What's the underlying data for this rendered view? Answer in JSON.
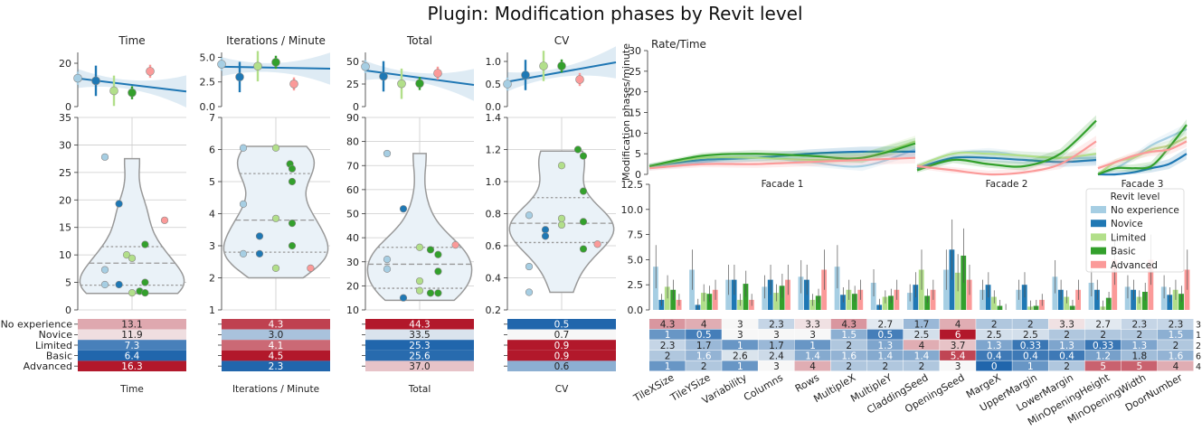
{
  "title": "Plugin: Modification phases by Revit level",
  "levels": [
    "No experience",
    "Novice",
    "Limited",
    "Basic",
    "Advanced"
  ],
  "colors": {
    "levels": [
      "#a6cee3",
      "#1f78b4",
      "#b2df8a",
      "#33a02c",
      "#fb9a99"
    ],
    "heat_low": "#2166ac",
    "heat_mid": "#f7f7f7",
    "heat_high": "#b2182b",
    "violin_fill": "#eaf2f8",
    "violin_line": "#999999",
    "regline": "#1f77b4"
  },
  "chart_data": [
    {
      "type": "scatter",
      "panel": "Time",
      "title": "Time",
      "xlabel": "Time",
      "reg_ylim": [
        0,
        25
      ],
      "reg_yticks": [
        0,
        20
      ],
      "reg_x_max": 6,
      "reg_line": [
        13.0,
        7.0
      ],
      "reg_points": [
        {
          "x": 0,
          "y": 13.1
        },
        {
          "x": 1,
          "y": 11.9
        },
        {
          "x": 2,
          "y": 7.3
        },
        {
          "x": 3,
          "y": 6.4
        },
        {
          "x": 4,
          "y": 16.3
        }
      ],
      "violin_ylim": [
        0,
        35
      ],
      "violin_yticks": [
        0,
        5,
        10,
        15,
        20,
        25,
        30,
        35
      ],
      "violin_range": [
        3,
        27.5
      ],
      "quartiles": [
        4.5,
        8.5,
        11.5
      ],
      "points": [
        {
          "level": 0,
          "x": -0.25,
          "y": 27.8
        },
        {
          "level": 0,
          "x": -0.25,
          "y": 7.3
        },
        {
          "level": 0,
          "x": -0.25,
          "y": 4.6
        },
        {
          "level": 1,
          "x": -0.12,
          "y": 19.3
        },
        {
          "level": 1,
          "x": -0.12,
          "y": 4.6
        },
        {
          "level": 2,
          "x": -0.05,
          "y": 10.0
        },
        {
          "level": 2,
          "x": 0.0,
          "y": 9.4
        },
        {
          "level": 2,
          "x": 0.0,
          "y": 3.1
        },
        {
          "level": 3,
          "x": 0.12,
          "y": 11.9
        },
        {
          "level": 3,
          "x": 0.12,
          "y": 5.0
        },
        {
          "level": 3,
          "x": 0.07,
          "y": 3.4
        },
        {
          "level": 3,
          "x": 0.12,
          "y": 3.1
        },
        {
          "level": 4,
          "x": 0.3,
          "y": 16.3
        }
      ],
      "heat_values": [
        "13.1",
        "11.9",
        "7.3",
        "6.4",
        "16.3"
      ]
    },
    {
      "type": "scatter",
      "panel": "Iterations",
      "title": "Iterations / Minute",
      "xlabel": "Iterations / Minute",
      "reg_ylim": [
        0,
        5.5
      ],
      "reg_yticks": [
        0.0,
        2.5,
        5.0
      ],
      "reg_x_max": 6,
      "reg_line": [
        4.05,
        3.85
      ],
      "reg_points": [
        {
          "x": 0,
          "y": 4.3
        },
        {
          "x": 1,
          "y": 3.0
        },
        {
          "x": 2,
          "y": 4.1
        },
        {
          "x": 3,
          "y": 4.5
        },
        {
          "x": 4,
          "y": 2.3
        }
      ],
      "violin_ylim": [
        1,
        7
      ],
      "violin_yticks": [
        1,
        2,
        3,
        4,
        5,
        6,
        7
      ],
      "violin_range": [
        2.0,
        6.1
      ],
      "quartiles": [
        2.8,
        3.8,
        5.25
      ],
      "points": [
        {
          "level": 0,
          "x": -0.3,
          "y": 6.05
        },
        {
          "level": 0,
          "x": -0.3,
          "y": 4.3
        },
        {
          "level": 0,
          "x": -0.3,
          "y": 2.75
        },
        {
          "level": 1,
          "x": -0.15,
          "y": 3.3
        },
        {
          "level": 1,
          "x": -0.15,
          "y": 2.75
        },
        {
          "level": 2,
          "x": 0.0,
          "y": 6.05
        },
        {
          "level": 2,
          "x": 0.0,
          "y": 3.85
        },
        {
          "level": 2,
          "x": 0.0,
          "y": 2.3
        },
        {
          "level": 3,
          "x": 0.13,
          "y": 5.55
        },
        {
          "level": 3,
          "x": 0.15,
          "y": 5.4
        },
        {
          "level": 3,
          "x": 0.15,
          "y": 5.0
        },
        {
          "level": 3,
          "x": 0.15,
          "y": 3.7
        },
        {
          "level": 3,
          "x": 0.15,
          "y": 3.0
        },
        {
          "level": 4,
          "x": 0.32,
          "y": 2.3
        }
      ],
      "heat_values": [
        "4.3",
        "3.0",
        "4.1",
        "4.5",
        "2.3"
      ]
    },
    {
      "type": "scatter",
      "panel": "Total",
      "title": "Total",
      "xlabel": "Total",
      "reg_ylim": [
        0,
        60
      ],
      "reg_yticks": [
        0,
        25,
        50
      ],
      "reg_x_max": 6,
      "reg_line": [
        40.0,
        24.0
      ],
      "reg_points": [
        {
          "x": 0,
          "y": 44.3
        },
        {
          "x": 1,
          "y": 33.5
        },
        {
          "x": 2,
          "y": 25.3
        },
        {
          "x": 3,
          "y": 25.6
        },
        {
          "x": 4,
          "y": 37.0
        }
      ],
      "violin_ylim": [
        10,
        90
      ],
      "violin_yticks": [
        10,
        20,
        30,
        40,
        50,
        60,
        70,
        80,
        90
      ],
      "violin_range": [
        14,
        75
      ],
      "quartiles": [
        19,
        29,
        36
      ],
      "points": [
        {
          "level": 0,
          "x": -0.3,
          "y": 75
        },
        {
          "level": 0,
          "x": -0.3,
          "y": 31
        },
        {
          "level": 0,
          "x": -0.3,
          "y": 27
        },
        {
          "level": 1,
          "x": -0.15,
          "y": 52
        },
        {
          "level": 1,
          "x": -0.15,
          "y": 15
        },
        {
          "level": 2,
          "x": 0.0,
          "y": 36
        },
        {
          "level": 2,
          "x": 0.0,
          "y": 22
        },
        {
          "level": 2,
          "x": 0.0,
          "y": 18
        },
        {
          "level": 3,
          "x": 0.1,
          "y": 35
        },
        {
          "level": 3,
          "x": 0.17,
          "y": 33
        },
        {
          "level": 3,
          "x": 0.17,
          "y": 26
        },
        {
          "level": 3,
          "x": 0.1,
          "y": 17
        },
        {
          "level": 3,
          "x": 0.17,
          "y": 17
        },
        {
          "level": 4,
          "x": 0.33,
          "y": 37
        }
      ],
      "heat_values": [
        "44.3",
        "33.5",
        "25.3",
        "25.6",
        "37.0"
      ]
    },
    {
      "type": "scatter",
      "panel": "CV",
      "title": "CV",
      "xlabel": "CV",
      "reg_ylim": [
        0,
        1.2
      ],
      "reg_yticks": [
        0.0,
        0.5,
        1.0
      ],
      "reg_x_max": 6,
      "reg_line": [
        0.55,
        0.98
      ],
      "reg_points": [
        {
          "x": 0,
          "y": 0.5
        },
        {
          "x": 1,
          "y": 0.7
        },
        {
          "x": 2,
          "y": 0.9
        },
        {
          "x": 3,
          "y": 0.9
        },
        {
          "x": 4,
          "y": 0.6
        }
      ],
      "violin_ylim": [
        0.2,
        1.4
      ],
      "violin_yticks": [
        0.2,
        0.4,
        0.6,
        0.8,
        1.0,
        1.2,
        1.4
      ],
      "violin_range": [
        0.31,
        1.19
      ],
      "quartiles": [
        0.62,
        0.74,
        0.9
      ],
      "points": [
        {
          "level": 0,
          "x": -0.3,
          "y": 0.79
        },
        {
          "level": 0,
          "x": -0.3,
          "y": 0.47
        },
        {
          "level": 0,
          "x": -0.3,
          "y": 0.31
        },
        {
          "level": 1,
          "x": -0.15,
          "y": 0.7
        },
        {
          "level": 1,
          "x": -0.15,
          "y": 0.66
        },
        {
          "level": 2,
          "x": 0.0,
          "y": 1.1
        },
        {
          "level": 2,
          "x": 0.0,
          "y": 0.77
        },
        {
          "level": 2,
          "x": 0.0,
          "y": 0.73
        },
        {
          "level": 3,
          "x": 0.15,
          "y": 1.2
        },
        {
          "level": 3,
          "x": 0.2,
          "y": 1.16
        },
        {
          "level": 3,
          "x": 0.2,
          "y": 0.94
        },
        {
          "level": 3,
          "x": 0.2,
          "y": 0.75
        },
        {
          "level": 3,
          "x": 0.2,
          "y": 0.58
        },
        {
          "level": 4,
          "x": 0.33,
          "y": 0.61
        }
      ],
      "heat_values": [
        "0.5",
        "0.7",
        "0.9",
        "0.9",
        "0.6"
      ]
    },
    {
      "type": "line",
      "panel": "Rate/Time",
      "title": "Rate/Time",
      "ylabel": "Modification phases/minute",
      "ylim": [
        0,
        30
      ],
      "yticks": [
        0,
        5,
        10,
        15,
        20,
        25,
        30
      ],
      "facades": [
        "Facade 1",
        "Facade 2",
        "Facade 3"
      ],
      "t_span": [
        0,
        10
      ],
      "series": [
        {
          "level": 0,
          "facades": [
            {
              "t": [
                0,
                2,
                4,
                6,
                8,
                10
              ],
              "y": [
                1.5,
                3.0,
                4.0,
                3.0,
                2.0,
                6.0
              ]
            },
            {
              "t": [
                0,
                2,
                4,
                6,
                8,
                10
              ],
              "y": [
                2.0,
                5.0,
                5.5,
                4.5,
                4.0,
                4.0
              ]
            },
            {
              "t": [
                0,
                2,
                4,
                6,
                8,
                10
              ],
              "y": [
                0,
                1.5,
                4.0,
                7.0,
                9.0,
                11.0
              ]
            }
          ]
        },
        {
          "level": 1,
          "facades": [
            {
              "t": [
                0,
                2,
                4,
                6,
                8,
                10
              ],
              "y": [
                2.0,
                3.5,
                4.0,
                5.0,
                5.5,
                5.5
              ]
            },
            {
              "t": [
                0,
                2,
                4,
                6,
                8,
                10
              ],
              "y": [
                1.5,
                4.0,
                4.0,
                3.5,
                3.0,
                3.5
              ]
            },
            {
              "t": [
                0,
                2,
                4,
                6,
                8,
                10
              ],
              "y": [
                0,
                0,
                0.5,
                1.5,
                2.5,
                5.0
              ]
            }
          ]
        },
        {
          "level": 2,
          "facades": [
            {
              "t": [
                0,
                2,
                4,
                6,
                8,
                10
              ],
              "y": [
                2.0,
                4.0,
                4.0,
                3.5,
                4.0,
                8.0
              ]
            },
            {
              "t": [
                0,
                2,
                4,
                6,
                8,
                10
              ],
              "y": [
                2.0,
                5.0,
                5.0,
                4.5,
                4.0,
                5.0
              ]
            },
            {
              "t": [
                0,
                2,
                4,
                6,
                8,
                10
              ],
              "y": [
                0,
                3.0,
                4.0,
                6.0,
                7.0,
                9.0
              ]
            }
          ]
        },
        {
          "level": 3,
          "facades": [
            {
              "t": [
                0,
                2,
                4,
                6,
                8,
                10
              ],
              "y": [
                2.0,
                4.5,
                5.0,
                4.5,
                4.0,
                7.5
              ]
            },
            {
              "t": [
                0,
                2,
                4,
                6,
                8,
                10
              ],
              "y": [
                1.0,
                3.5,
                2.5,
                2.0,
                5.0,
                13.0
              ]
            },
            {
              "t": [
                0,
                2,
                4,
                6,
                8,
                10
              ],
              "y": [
                0,
                1.5,
                1.5,
                2.0,
                6.5,
                12.0
              ]
            }
          ]
        },
        {
          "level": 4,
          "facades": [
            {
              "t": [
                0,
                2,
                4,
                6,
                8,
                10
              ],
              "y": [
                1.5,
                2.5,
                2.5,
                3.0,
                3.5,
                4.0
              ]
            },
            {
              "t": [
                0,
                2,
                4,
                6,
                8,
                10
              ],
              "y": [
                2.0,
                1.0,
                0.0,
                0.5,
                2.5,
                8.0
              ]
            },
            {
              "t": [
                0,
                2,
                4,
                6,
                8,
                10
              ],
              "y": [
                1.5,
                3.0,
                4.5,
                5.5,
                6.0,
                8.0
              ]
            }
          ]
        }
      ]
    },
    {
      "type": "bar",
      "panel": "Parameters",
      "ylim": [
        0,
        12.5
      ],
      "yticks": [
        0.0,
        2.5,
        5.0,
        7.5,
        10.0,
        12.5
      ],
      "legend_title": "Revit level",
      "legend_position": "top-right",
      "categories": [
        "TileXSize",
        "TileYSize",
        "Variability",
        "Columns",
        "Rows",
        "MultipleX",
        "MultipleY",
        "CladdingSeed",
        "OpeningSeed",
        "MargeX",
        "UpperMargin",
        "LowerMargin",
        "MinOpeningHeight",
        "MinOpeningWidth",
        "DoorNumber"
      ],
      "series": [
        {
          "name": "No experience",
          "level": 0,
          "values": [
            4.3,
            4,
            3,
            2.3,
            3.3,
            4.3,
            2.7,
            1.7,
            4,
            2,
            2,
            3.3,
            2.7,
            2.3,
            2.3
          ]
        },
        {
          "name": "Novice",
          "level": 1,
          "values": [
            1,
            0.5,
            3,
            3,
            3,
            1.5,
            0.5,
            2.5,
            6,
            2.5,
            2.5,
            2,
            2,
            2,
            1.5
          ]
        },
        {
          "name": "Limited",
          "level": 2,
          "values": [
            2.3,
            1.7,
            1,
            1.7,
            1,
            2,
            1.3,
            4,
            3.7,
            1.3,
            0.33,
            1.3,
            0.33,
            1.3,
            2
          ]
        },
        {
          "name": "Basic",
          "level": 3,
          "values": [
            2,
            1.6,
            2.6,
            2.4,
            1.4,
            1.6,
            1.4,
            1.4,
            5.4,
            0.4,
            0.4,
            0.4,
            1.2,
            1.8,
            1.6
          ]
        },
        {
          "name": "Advanced",
          "level": 4,
          "values": [
            1,
            2,
            1,
            3,
            4,
            2,
            2,
            2,
            3,
            0,
            1,
            2,
            5,
            5,
            4
          ]
        }
      ],
      "heat_labels": [
        [
          "4.3",
          "4",
          "3",
          "2.3",
          "3.3",
          "4.3",
          "2.7",
          "1.7",
          "4",
          "2",
          "2",
          "3.3",
          "2.7",
          "2.3",
          "2.3"
        ],
        [
          "1",
          "0.5",
          "3",
          "3",
          "3",
          "1.5",
          "0.5",
          "2.5",
          "6",
          "2.5",
          "2.5",
          "2",
          "2",
          "2",
          "1.5"
        ],
        [
          "2.3",
          "1.7",
          "1",
          "1.7",
          "1",
          "2",
          "1.3",
          "4",
          "3.7",
          "1.3",
          "0.33",
          "1.3",
          "0.33",
          "1.3",
          "2"
        ],
        [
          "2",
          "1.6",
          "2.6",
          "2.4",
          "1.4",
          "1.6",
          "1.4",
          "1.4",
          "5.4",
          "0.4",
          "0.4",
          "0.4",
          "1.2",
          "1.8",
          "1.6"
        ],
        [
          "1",
          "2",
          "1",
          "3",
          "4",
          "2",
          "2",
          "2",
          "3",
          "0",
          "1",
          "2",
          "5",
          "5",
          "4"
        ]
      ],
      "heat_edge": [
        "3",
        "1",
        "2",
        "6",
        "4"
      ]
    }
  ]
}
